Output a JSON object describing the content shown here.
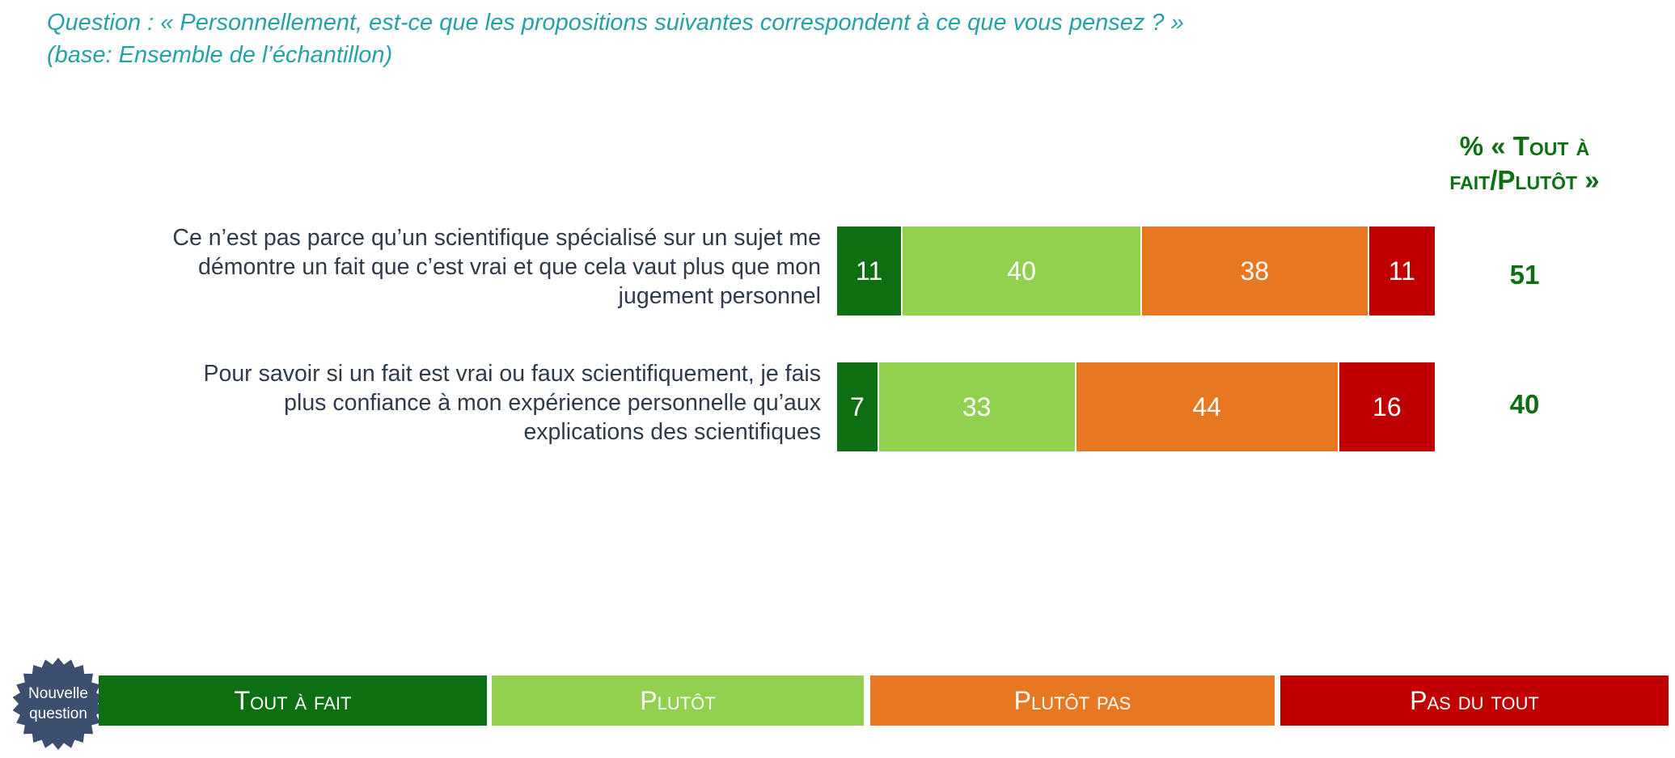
{
  "question": {
    "line1": "Question : « Personnellement, est-ce que les propositions suivantes correspondent à ce que vous pensez ? »",
    "line2": "(base: Ensemble de l’échantillon)"
  },
  "summary_header": {
    "line1": "%  « Tout à",
    "line2": "fait/Plutôt »"
  },
  "new_question": {
    "line1": "Nouvelle",
    "line2": "question",
    "color": "#3d4f6e"
  },
  "chart_data": {
    "type": "bar",
    "orientation": "horizontal",
    "stacked": true,
    "categories": [
      "Ce n’est pas parce qu’un scientifique spécialisé sur un sujet me démontre un fait que c’est vrai et que cela vaut plus que mon jugement personnel",
      "Pour savoir si un fait est vrai ou faux scientifiquement, je fais plus confiance à mon expérience personnelle qu’aux explications des scientifiques"
    ],
    "category_lines": [
      [
        "Ce n’est pas parce qu’un scientifique spécialisé sur un sujet me",
        "démontre un fait que c’est vrai et que cela vaut plus que mon",
        "jugement personnel"
      ],
      [
        "Pour savoir si un fait est vrai ou faux scientifiquement, je fais",
        "plus confiance à mon expérience personnelle qu’aux",
        "explications des scientifiques"
      ]
    ],
    "series": [
      {
        "name": "Tout à fait",
        "values": [
          11,
          7
        ],
        "color": "#0d6f12"
      },
      {
        "name": "Plutôt",
        "values": [
          40,
          33
        ],
        "color": "#92d050"
      },
      {
        "name": "Plutôt pas",
        "values": [
          38,
          44
        ],
        "color": "#e87722"
      },
      {
        "name": "Pas du tout",
        "values": [
          11,
          16
        ],
        "color": "#c00000"
      }
    ],
    "summary_values": [
      51,
      40
    ],
    "legend_position": "bottom"
  }
}
